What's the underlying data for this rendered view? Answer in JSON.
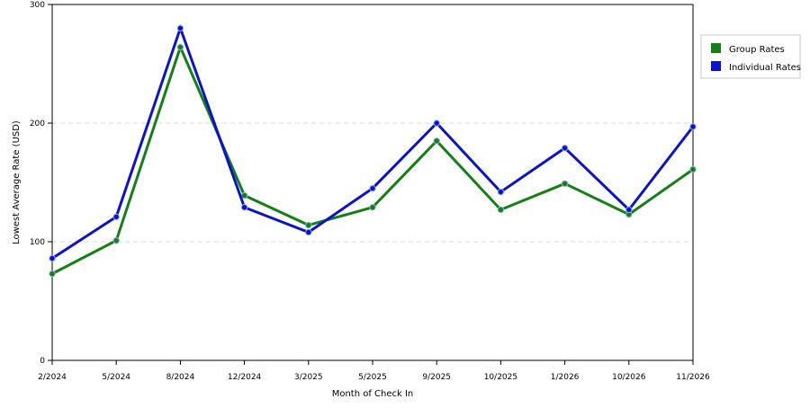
{
  "chart_data": {
    "type": "line",
    "categories": [
      "2/2024",
      "5/2024",
      "8/2024",
      "12/2024",
      "3/2025",
      "5/2025",
      "9/2025",
      "10/2025",
      "1/2026",
      "10/2026",
      "11/2026"
    ],
    "series": [
      {
        "name": "Group Rates",
        "color": "#138013",
        "values": [
          73,
          101,
          264,
          139,
          114,
          129,
          185,
          127,
          149,
          123,
          161
        ]
      },
      {
        "name": "Individual Rates",
        "color": "#0a12cf",
        "values": [
          86,
          121,
          280,
          129,
          108,
          145,
          200,
          142,
          179,
          127,
          197
        ]
      }
    ],
    "xlabel": "Month of Check In",
    "ylabel": "Lowest Average Rate (USD)",
    "ylim": [
      0,
      300
    ],
    "yticks": [
      0,
      100,
      200,
      300
    ],
    "grid": true,
    "legend_position": "top-right"
  }
}
